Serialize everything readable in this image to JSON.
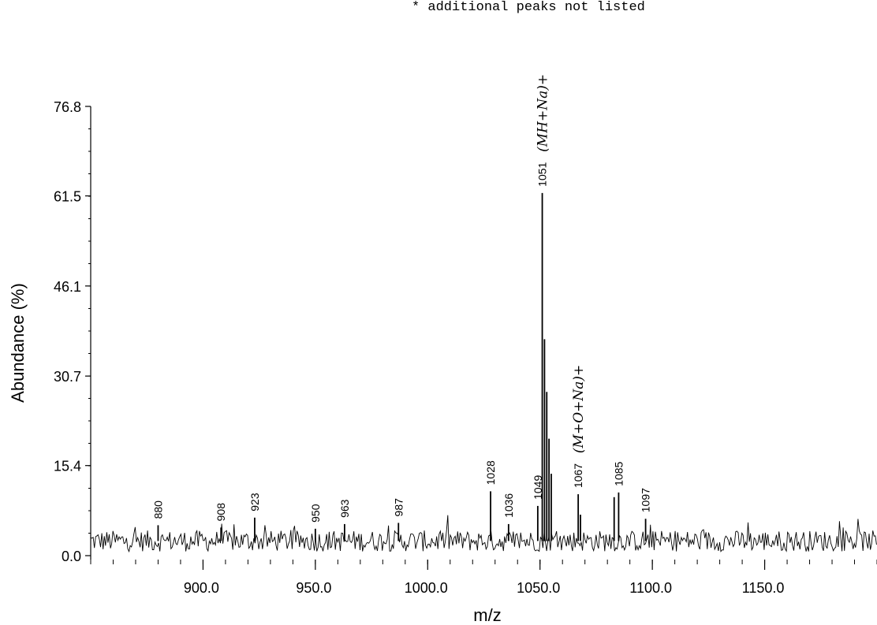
{
  "chart_data": {
    "type": "line",
    "title": "",
    "header_note": "* additional peaks not listed",
    "xlabel": "m/z",
    "ylabel": "Abundance (%)",
    "xlim": [
      850,
      1200
    ],
    "ylim": [
      0,
      76.8
    ],
    "x_ticks": [
      900,
      950,
      1000,
      1050,
      1100,
      1150
    ],
    "x_tick_labels": [
      "900.0",
      "950.0",
      "1000.0",
      "1050.0",
      "1100.0",
      "1150.0"
    ],
    "y_ticks": [
      0,
      15.4,
      30.7,
      46.1,
      61.5,
      76.8
    ],
    "y_tick_labels": [
      "0.0",
      "15.4",
      "30.7",
      "46.1",
      "61.5",
      "76.8"
    ],
    "grid": false,
    "baseline_level": 2.5,
    "baseline_noise": 1.8,
    "peaks": [
      {
        "mz": 880,
        "abundance": 5.2,
        "label": "880"
      },
      {
        "mz": 908,
        "abundance": 4.8,
        "label": "908"
      },
      {
        "mz": 923,
        "abundance": 6.5,
        "label": "923"
      },
      {
        "mz": 950,
        "abundance": 4.6,
        "label": "950"
      },
      {
        "mz": 963,
        "abundance": 5.4,
        "label": "963"
      },
      {
        "mz": 987,
        "abundance": 5.6,
        "label": "987"
      },
      {
        "mz": 1028,
        "abundance": 11.0,
        "label": "1028"
      },
      {
        "mz": 1036,
        "abundance": 5.4,
        "label": "1036"
      },
      {
        "mz": 1049,
        "abundance": 8.5,
        "label": "1049"
      },
      {
        "mz": 1051,
        "abundance": 62.0,
        "label": "1051"
      },
      {
        "mz": 1052,
        "abundance": 37.0,
        "label": ""
      },
      {
        "mz": 1053,
        "abundance": 28.0,
        "label": ""
      },
      {
        "mz": 1054,
        "abundance": 20.0,
        "label": ""
      },
      {
        "mz": 1055,
        "abundance": 14.0,
        "label": ""
      },
      {
        "mz": 1067,
        "abundance": 10.5,
        "label": "1067"
      },
      {
        "mz": 1068,
        "abundance": 7.0,
        "label": ""
      },
      {
        "mz": 1083,
        "abundance": 10.0,
        "label": ""
      },
      {
        "mz": 1085,
        "abundance": 10.8,
        "label": "1085"
      },
      {
        "mz": 1097,
        "abundance": 6.3,
        "label": "1097"
      }
    ],
    "annotations": [
      {
        "text": "(MH+Na)+",
        "mz": 1051,
        "kind": "handwritten"
      },
      {
        "text": "(M+O+Na)+",
        "mz": 1067,
        "kind": "handwritten"
      }
    ]
  }
}
